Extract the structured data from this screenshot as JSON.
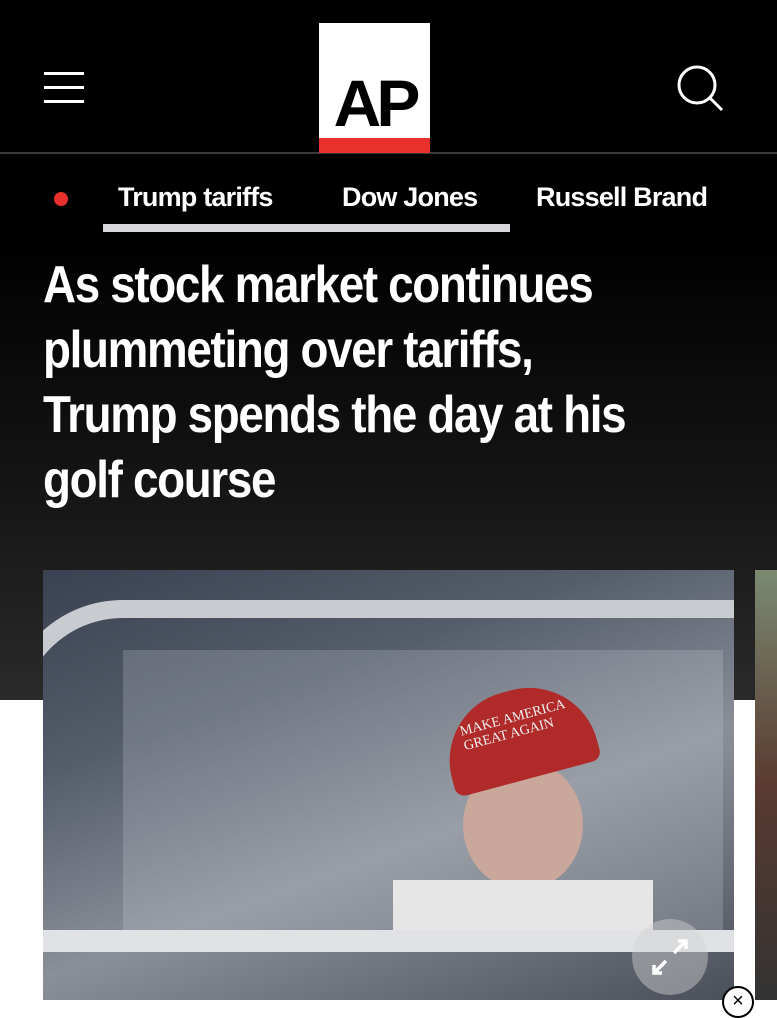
{
  "header": {
    "logo_text": "AP",
    "menu_icon": "hamburger-icon",
    "search_icon": "search-icon",
    "accent_color": "#e8302c"
  },
  "nav": {
    "items": [
      {
        "label": "Trump tariffs"
      },
      {
        "label": "Dow Jones"
      },
      {
        "label": "Russell Brand"
      }
    ]
  },
  "article": {
    "headline": "As stock market continues plummeting over tariffs, Trump spends the day at his golf course",
    "photo": {
      "hat_text": "MAKE AMERICA GREAT AGAIN",
      "expand_icon": "expand-icon"
    }
  },
  "ad": {
    "close_icon": "close-icon"
  }
}
